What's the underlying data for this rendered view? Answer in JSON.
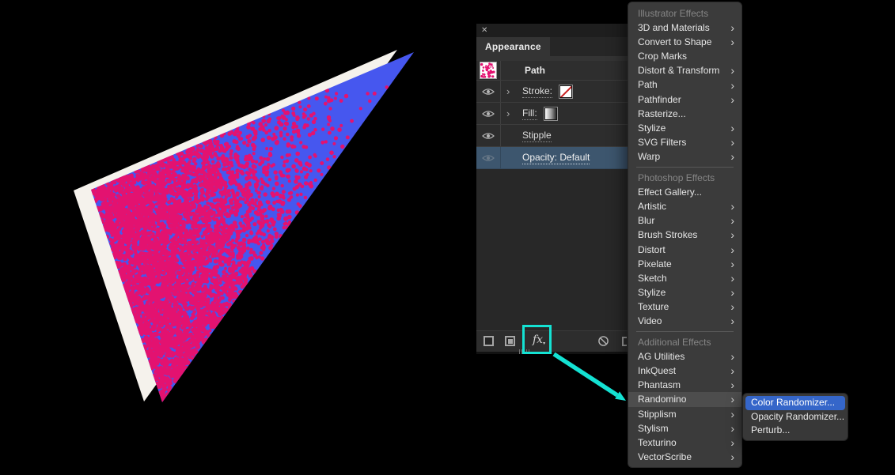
{
  "colors": {
    "background": "#000000",
    "annotation_teal": "#14e2d3",
    "selection_blue": "#3d566e",
    "submenu_highlight": "#3566c9",
    "artwork_blue": "#4657ef",
    "artwork_pink": "#e31270",
    "artwork_backing": "#f5f2ec"
  },
  "icons": {
    "close": "✕",
    "expand_chevron": "›",
    "submenu_chevron": "›",
    "fx_caret": "▾"
  },
  "appearance_panel": {
    "tab": "Appearance",
    "path_row": {
      "label": "Path"
    },
    "rows": [
      {
        "label": "Stroke:",
        "swatch": "none-stroke",
        "expandable": true
      },
      {
        "label": "Fill:",
        "swatch": "gradient",
        "expandable": true
      },
      {
        "label": "Stipple",
        "expandable": false
      },
      {
        "label": "Opacity: Default",
        "selected": true
      }
    ],
    "footer": {
      "fx_label": "fx"
    }
  },
  "effects_menu": {
    "sections": [
      {
        "header": "Illustrator Effects",
        "items": [
          {
            "label": "3D and Materials",
            "submenu": true
          },
          {
            "label": "Convert to Shape",
            "submenu": true
          },
          {
            "label": "Crop Marks",
            "submenu": false
          },
          {
            "label": "Distort & Transform",
            "submenu": true
          },
          {
            "label": "Path",
            "submenu": true
          },
          {
            "label": "Pathfinder",
            "submenu": true
          },
          {
            "label": "Rasterize...",
            "submenu": false
          },
          {
            "label": "Stylize",
            "submenu": true
          },
          {
            "label": "SVG Filters",
            "submenu": true
          },
          {
            "label": "Warp",
            "submenu": true
          }
        ]
      },
      {
        "header": "Photoshop Effects",
        "items": [
          {
            "label": "Effect Gallery...",
            "submenu": false
          },
          {
            "label": "Artistic",
            "submenu": true
          },
          {
            "label": "Blur",
            "submenu": true
          },
          {
            "label": "Brush Strokes",
            "submenu": true
          },
          {
            "label": "Distort",
            "submenu": true
          },
          {
            "label": "Pixelate",
            "submenu": true
          },
          {
            "label": "Sketch",
            "submenu": true
          },
          {
            "label": "Stylize",
            "submenu": true
          },
          {
            "label": "Texture",
            "submenu": true
          },
          {
            "label": "Video",
            "submenu": true
          }
        ]
      },
      {
        "header": "Additional Effects",
        "items": [
          {
            "label": "AG Utilities",
            "submenu": true
          },
          {
            "label": "InkQuest",
            "submenu": true
          },
          {
            "label": "Phantasm",
            "submenu": true
          },
          {
            "label": "Randomino",
            "submenu": true,
            "highlighted": true
          },
          {
            "label": "Stipplism",
            "submenu": true
          },
          {
            "label": "Stylism",
            "submenu": true
          },
          {
            "label": "Texturino",
            "submenu": true
          },
          {
            "label": "VectorScribe",
            "submenu": true
          }
        ]
      }
    ]
  },
  "submenu": {
    "items": [
      {
        "label": "Color Randomizer...",
        "selected": true
      },
      {
        "label": "Opacity Randomizer...",
        "selected": false
      },
      {
        "label": "Perturb...",
        "selected": false
      }
    ]
  }
}
